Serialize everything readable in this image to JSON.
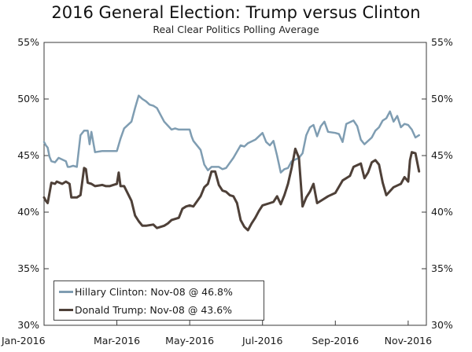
{
  "chart_data": {
    "type": "line",
    "title": "2016 General Election: Trump versus Clinton",
    "subtitle": "Real Clear Politics Polling Average",
    "ylim": [
      30,
      55
    ],
    "xlim": [
      0,
      10.5
    ],
    "yticks": [
      "30%",
      "35%",
      "40%",
      "45%",
      "50%",
      "55%"
    ],
    "ytick_values": [
      30,
      35,
      40,
      45,
      50,
      55
    ],
    "xticks": [
      "Jan-2016",
      "Mar-2016",
      "May-2016",
      "Jul-2016",
      "Sep-2016",
      "Nov-2016"
    ],
    "xtick_values": [
      0,
      2,
      4,
      6,
      8,
      10
    ],
    "colors": {
      "clinton": "#7f9db2",
      "trump": "#4e4038",
      "axis": "#3a3a3a"
    },
    "series": [
      {
        "name": "Hillary Clinton",
        "legend": "Hillary Clinton: Nov-08 @ 46.8%",
        "color": "#7f9db2",
        "x": [
          0,
          0.05,
          0.1,
          0.15,
          0.2,
          0.3,
          0.35,
          0.4,
          0.6,
          0.65,
          0.7,
          0.8,
          0.9,
          1.0,
          1.1,
          1.2,
          1.25,
          1.3,
          1.4,
          1.6,
          1.7,
          1.8,
          2.0,
          2.1,
          2.2,
          2.4,
          2.5,
          2.6,
          2.7,
          2.8,
          2.9,
          3.0,
          3.1,
          3.2,
          3.3,
          3.5,
          3.6,
          3.7,
          4.0,
          4.05,
          4.1,
          4.3,
          4.4,
          4.5,
          4.6,
          4.8,
          4.9,
          5.0,
          5.2,
          5.4,
          5.5,
          5.6,
          5.8,
          6.0,
          6.1,
          6.2,
          6.3,
          6.4,
          6.5,
          6.6,
          6.7,
          6.8,
          7.0,
          7.1,
          7.2,
          7.3,
          7.4,
          7.5,
          7.6,
          7.7,
          7.8,
          8.0,
          8.1,
          8.2,
          8.3,
          8.5,
          8.6,
          8.7,
          8.8,
          9.0,
          9.1,
          9.2,
          9.3,
          9.4,
          9.5,
          9.6,
          9.7,
          9.8,
          9.9,
          10.0,
          10.1,
          10.2,
          10.3
        ],
        "values": [
          46.2,
          45.9,
          45.7,
          44.9,
          44.5,
          44.4,
          44.6,
          44.8,
          44.5,
          44.0,
          44.0,
          44.1,
          44.0,
          46.8,
          47.2,
          47.2,
          46.0,
          47.1,
          45.3,
          45.4,
          45.4,
          45.4,
          45.4,
          46.5,
          47.4,
          48.0,
          49.2,
          50.3,
          50.0,
          49.8,
          49.5,
          49.4,
          49.2,
          48.6,
          48.0,
          47.3,
          47.4,
          47.3,
          47.3,
          46.7,
          46.3,
          45.5,
          44.2,
          43.7,
          44.0,
          44.0,
          43.8,
          43.9,
          44.8,
          45.9,
          45.8,
          46.1,
          46.4,
          47.0,
          46.2,
          45.9,
          46.3,
          45.0,
          43.5,
          43.8,
          43.9,
          44.5,
          44.8,
          45.2,
          46.8,
          47.5,
          47.7,
          46.7,
          47.6,
          48.0,
          47.1,
          47.0,
          46.9,
          46.2,
          47.8,
          48.1,
          47.6,
          46.4,
          46.0,
          46.6,
          47.2,
          47.5,
          48.1,
          48.3,
          48.9,
          48.0,
          48.5,
          47.5,
          47.8,
          47.7,
          47.3,
          46.6,
          46.8
        ]
      },
      {
        "name": "Donald Trump",
        "legend": "Donald Trump: Nov-08 @ 43.6%",
        "color": "#4e4038",
        "x": [
          0,
          0.05,
          0.1,
          0.2,
          0.3,
          0.35,
          0.5,
          0.6,
          0.7,
          0.75,
          0.8,
          0.9,
          1.0,
          1.1,
          1.15,
          1.2,
          1.3,
          1.4,
          1.6,
          1.7,
          1.8,
          1.9,
          2.0,
          2.05,
          2.1,
          2.2,
          2.4,
          2.5,
          2.6,
          2.7,
          2.8,
          3.0,
          3.1,
          3.3,
          3.4,
          3.5,
          3.7,
          3.8,
          3.9,
          4.0,
          4.1,
          4.3,
          4.4,
          4.5,
          4.6,
          4.7,
          4.8,
          4.9,
          5.0,
          5.1,
          5.2,
          5.3,
          5.4,
          5.5,
          5.6,
          5.7,
          5.8,
          5.9,
          6.0,
          6.2,
          6.3,
          6.4,
          6.5,
          6.6,
          6.7,
          6.8,
          6.9,
          7.0,
          7.1,
          7.2,
          7.3,
          7.4,
          7.5,
          7.6,
          7.8,
          8.0,
          8.2,
          8.4,
          8.5,
          8.7,
          8.8,
          8.9,
          9.0,
          9.1,
          9.2,
          9.3,
          9.4,
          9.6,
          9.8,
          9.9,
          10.0,
          10.05,
          10.1,
          10.2,
          10.3
        ],
        "values": [
          41.3,
          41.0,
          40.8,
          42.6,
          42.5,
          42.7,
          42.5,
          42.7,
          42.5,
          41.3,
          41.3,
          41.3,
          41.5,
          43.9,
          43.8,
          42.6,
          42.5,
          42.3,
          42.4,
          42.3,
          42.3,
          42.4,
          42.5,
          43.5,
          42.3,
          42.3,
          41.0,
          39.7,
          39.2,
          38.8,
          38.8,
          38.9,
          38.6,
          38.8,
          39.0,
          39.3,
          39.5,
          40.3,
          40.5,
          40.6,
          40.5,
          41.4,
          42.2,
          42.5,
          43.6,
          43.6,
          42.4,
          41.9,
          41.8,
          41.5,
          41.4,
          40.8,
          39.3,
          38.7,
          38.4,
          39.0,
          39.5,
          40.1,
          40.6,
          40.8,
          40.9,
          41.4,
          40.7,
          41.5,
          42.5,
          43.9,
          45.6,
          44.8,
          40.5,
          41.3,
          41.8,
          42.5,
          40.8,
          41.0,
          41.4,
          41.7,
          42.8,
          43.2,
          44.0,
          44.3,
          43.0,
          43.5,
          44.4,
          44.6,
          44.2,
          42.6,
          41.5,
          42.2,
          42.5,
          43.1,
          42.7,
          44.6,
          45.3,
          45.2,
          43.6
        ]
      }
    ]
  }
}
